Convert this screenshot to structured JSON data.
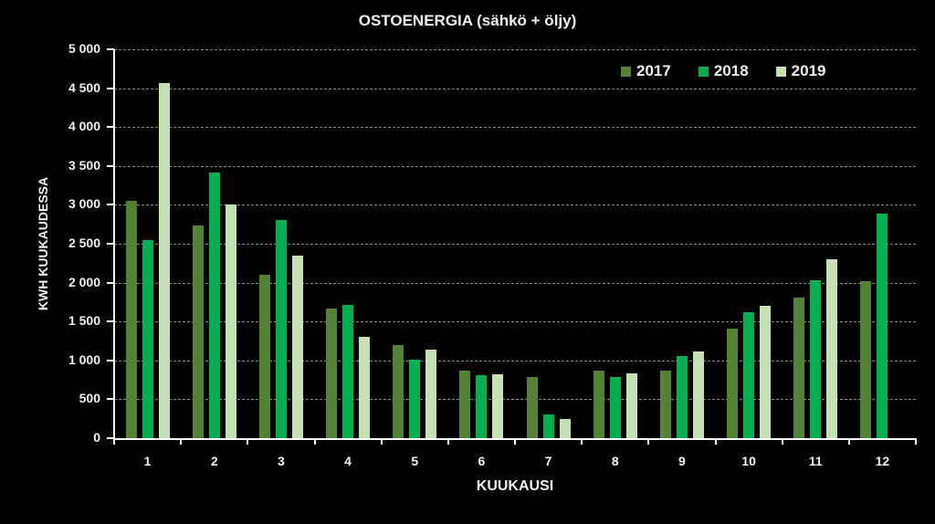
{
  "chart_data": {
    "type": "bar",
    "title": "OSTOENERGIA (sähkö + öljy)",
    "xlabel": "KUUKAUSI",
    "ylabel": "KWH KUUKAUDESSA",
    "ylim": [
      0,
      5000
    ],
    "yticks": [
      "0",
      "500",
      "1 000",
      "1 500",
      "2 000",
      "2 500",
      "3 000",
      "3 500",
      "4 000",
      "4 500",
      "5 000"
    ],
    "ytick_values": [
      0,
      500,
      1000,
      1500,
      2000,
      2500,
      3000,
      3500,
      4000,
      4500,
      5000
    ],
    "grid": true,
    "legend_position": "top-right inside",
    "categories": [
      "1",
      "2",
      "3",
      "4",
      "5",
      "6",
      "7",
      "8",
      "9",
      "10",
      "11",
      "12"
    ],
    "series": [
      {
        "name": "2017",
        "color": "#548235",
        "values": [
          3050,
          2740,
          2100,
          1670,
          1200,
          870,
          790,
          870,
          870,
          1410,
          1810,
          2020
        ]
      },
      {
        "name": "2018",
        "color": "#00B050",
        "values": [
          2550,
          3410,
          2800,
          1710,
          1010,
          810,
          305,
          790,
          1060,
          1620,
          2030,
          2890
        ]
      },
      {
        "name": "2019",
        "color": "#C5E0B4",
        "values": [
          4570,
          3010,
          2350,
          1300,
          1140,
          820,
          250,
          830,
          1120,
          1700,
          2300,
          null
        ]
      }
    ]
  }
}
